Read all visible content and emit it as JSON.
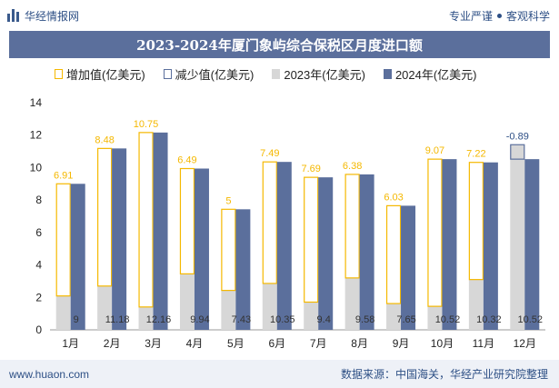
{
  "header": {
    "brand_name": "华经情报网",
    "tagline_left": "专业严谨",
    "tagline_right": "客观科学"
  },
  "footer": {
    "website": "www.huaon.com",
    "source": "数据来源：中国海关，华经产业研究院整理"
  },
  "colors": {
    "bar_2023": "#d7d7d7",
    "bar_2024": "#5b6f9c",
    "increase": "#f5b800",
    "decrease": "#5b6f9c",
    "title_bg": "#5b6f9c"
  },
  "chart_data": {
    "type": "bar",
    "title": "2023-2024年厦门象屿综合保税区月度进口额",
    "legend": [
      "增加值(亿美元)",
      "减少值(亿美元)",
      "2023年(亿美元)",
      "2024年(亿美元)"
    ],
    "categories": [
      "1月",
      "2月",
      "3月",
      "4月",
      "5月",
      "6月",
      "7月",
      "8月",
      "9月",
      "10月",
      "11月",
      "12月"
    ],
    "series": [
      {
        "name": "2023年(亿美元)",
        "values": [
          2.09,
          2.7,
          1.41,
          3.45,
          2.43,
          2.86,
          1.71,
          3.2,
          1.62,
          1.45,
          3.1,
          11.41
        ]
      },
      {
        "name": "2024年(亿美元)",
        "values": [
          9,
          11.18,
          12.16,
          9.94,
          7.43,
          10.35,
          9.4,
          9.58,
          7.65,
          10.52,
          10.32,
          10.52
        ]
      }
    ],
    "changes": [
      6.91,
      8.48,
      10.75,
      6.49,
      5,
      7.49,
      7.69,
      6.38,
      6.03,
      9.07,
      7.22,
      -0.89
    ],
    "change_labels": [
      "6.91",
      "8.48",
      "10.75",
      "6.49",
      "5",
      "7.49",
      "7.69",
      "6.38",
      "6.03",
      "9.07",
      "7.22",
      "-0.89"
    ],
    "value_labels": [
      "9",
      "11.18",
      "12.16",
      "9.94",
      "7.43",
      "10.35",
      "9.4",
      "9.58",
      "7.65",
      "10.52",
      "10.32",
      "10.52"
    ],
    "ylim": [
      0,
      14
    ],
    "yticks": [
      "0",
      "2",
      "4",
      "6",
      "8",
      "10",
      "12",
      "14"
    ],
    "grid": false,
    "legend_position": "top"
  }
}
